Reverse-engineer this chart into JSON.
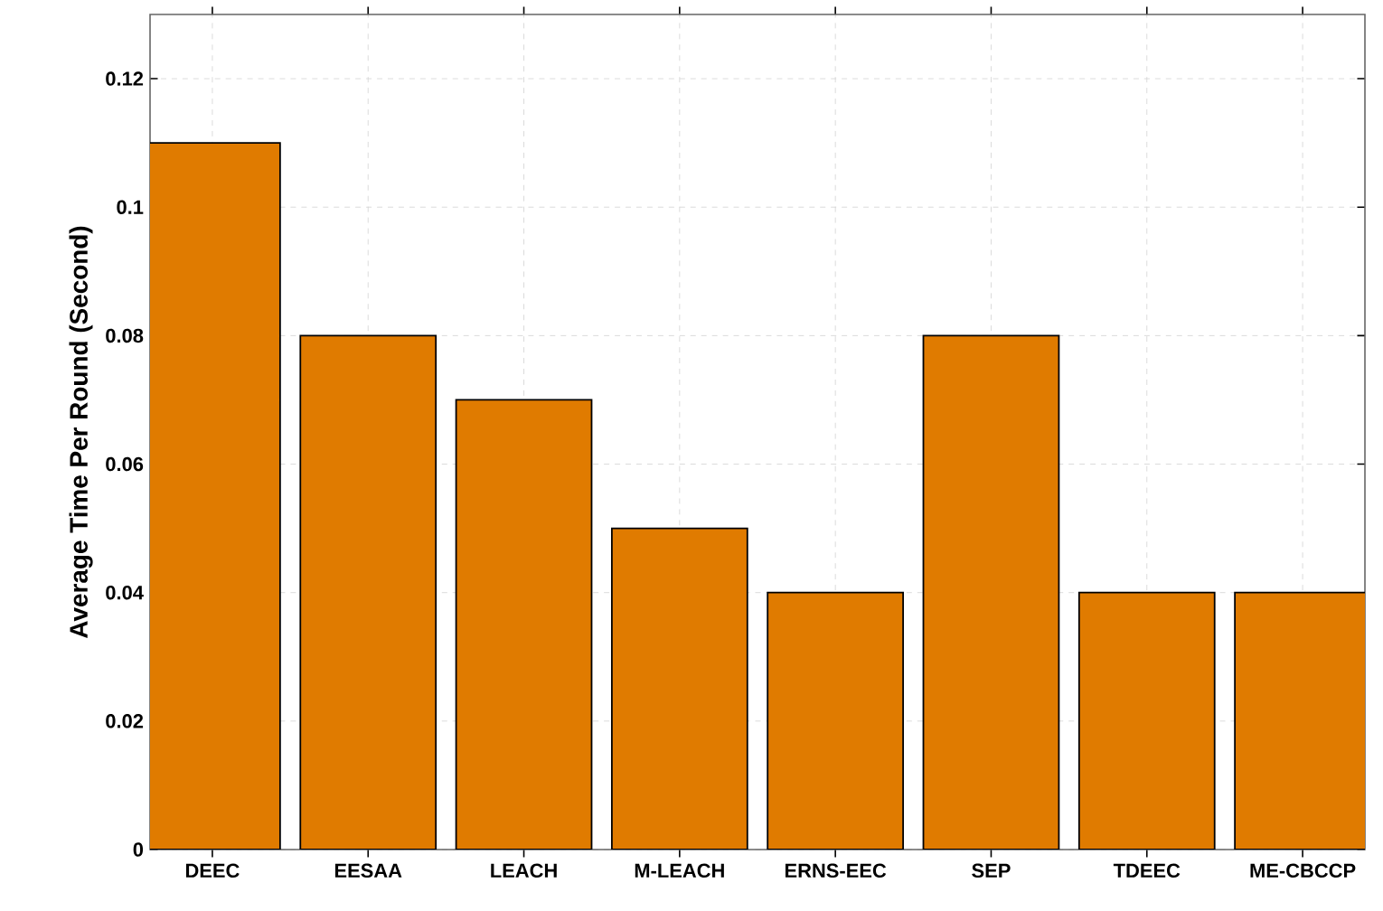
{
  "chart_data": {
    "type": "bar",
    "ylabel": "Average Time Per Round (Second)",
    "categories": [
      "DEEC",
      "EESAA",
      "LEACH",
      "M-LEACH",
      "ERNS-EEC",
      "SEP",
      "TDEEC",
      "ME-CBCCP"
    ],
    "values": [
      0.11,
      0.08,
      0.07,
      0.05,
      0.04,
      0.08,
      0.04,
      0.04
    ],
    "color": "#e07b00",
    "ylim": [
      0,
      0.13
    ],
    "yticks": [
      0,
      0.02,
      0.04,
      0.06,
      0.08,
      0.1,
      0.12
    ],
    "grid": true
  }
}
